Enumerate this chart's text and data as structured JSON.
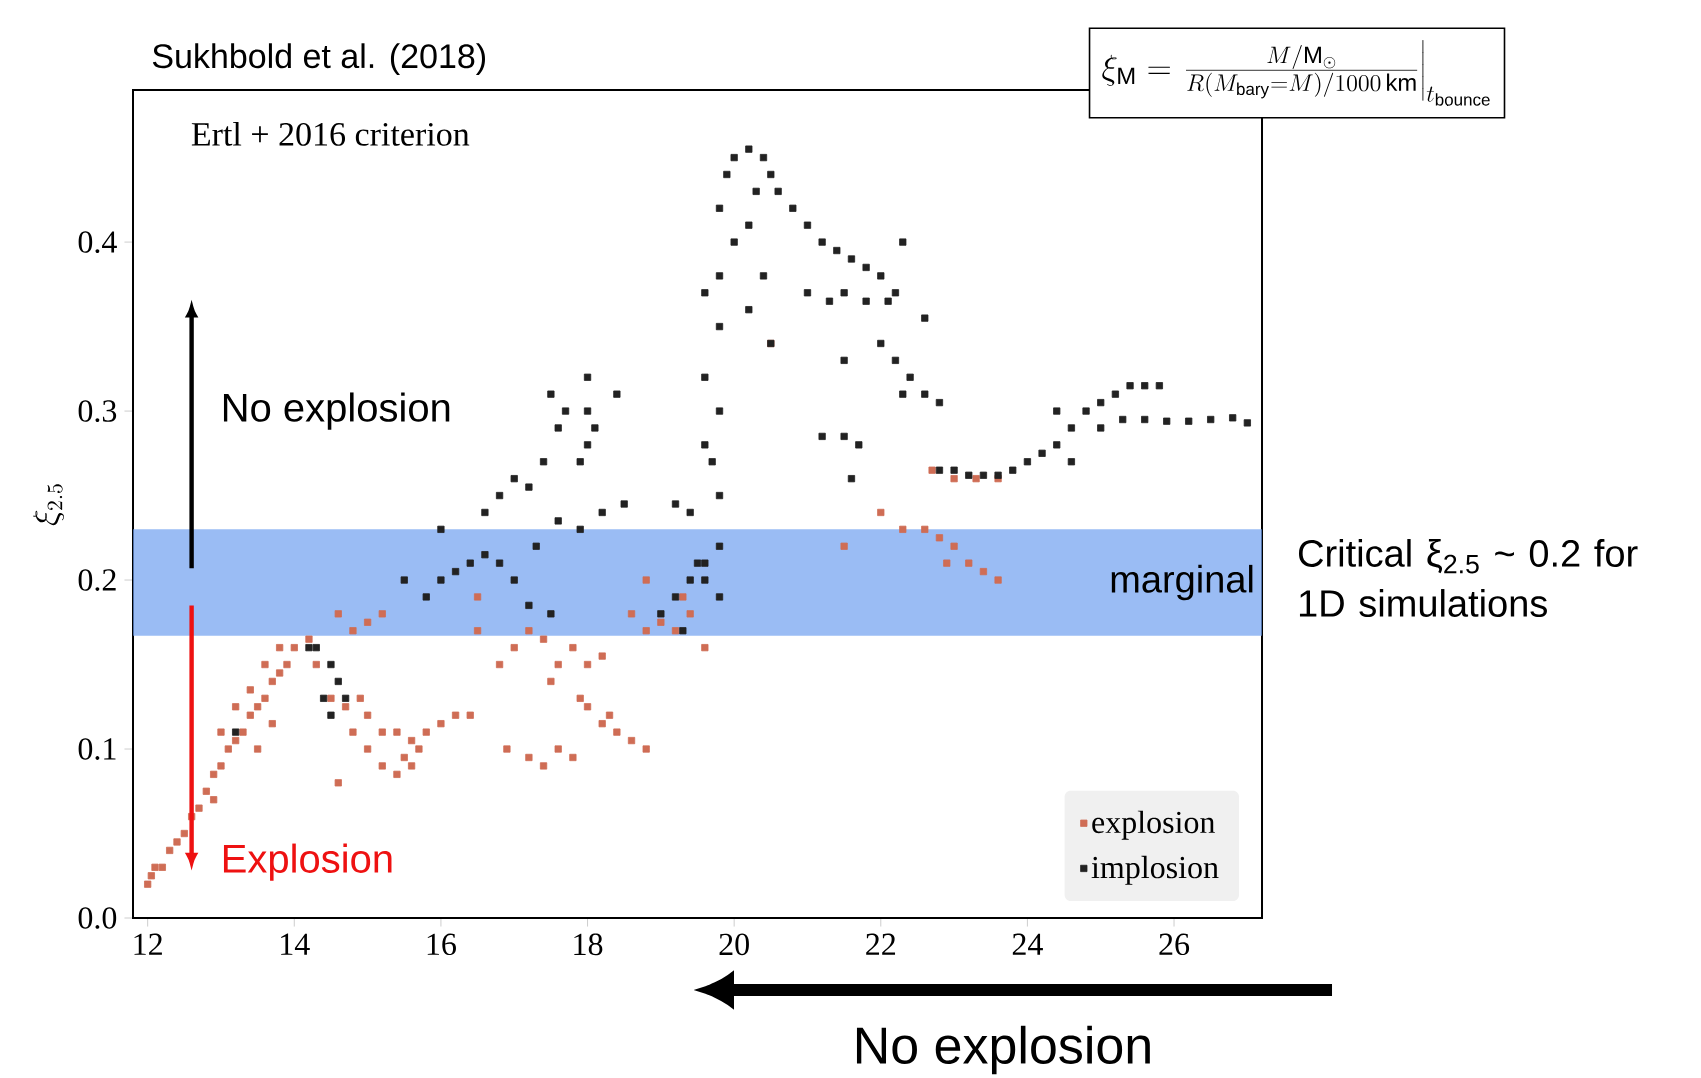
{
  "chart_data": {
    "type": "scatter",
    "title": "Sukhbold et al. (2018)",
    "ylabel": "\\xi_{2.5}",
    "xlim": [
      11.8,
      27.2
    ],
    "ylim": [
      0,
      0.49
    ],
    "xticks": [
      12,
      14,
      16,
      18,
      20,
      22,
      24,
      26
    ],
    "yticks": [
      {
        "value": 0,
        "label": "0.0"
      },
      0.1,
      0.2,
      0.3,
      0.4
    ],
    "marker": "square",
    "legend": "bottom right",
    "annotations": [
      "Ertl + 2016 criterion",
      "\\xi_{\\mathrm{M}} = \\left.\\frac{M/\\mathrm{M}_{\\odot}}{R(M_{\\mathrm{bary}} = M)/1000\\,\\mathrm{km}}\\right|_{t_{\\mathrm{bounce}}}",
      "No explosion",
      "Explosion",
      "Critical ξ$_{2.5}$ ~ 0.2 for 1D simulations",
      "No explosion"
    ],
    "bands": [
      {
        "axis": "y",
        "from": 0.167,
        "to": 0.23,
        "label": "marginal",
        "color": "#6f9fef"
      }
    ],
    "series": [
      {
        "name": "explosion",
        "color": "#cf6d55",
        "x": [
          12.0,
          12.05,
          12.1,
          12.2,
          12.3,
          12.4,
          12.5,
          12.6,
          12.7,
          12.8,
          12.9,
          13.0,
          13.1,
          13.2,
          13.3,
          13.4,
          13.5,
          13.6,
          13.7,
          13.8,
          13.9,
          14.0,
          13.2,
          13.4,
          13.6,
          13.8,
          13.0,
          13.5,
          13.7,
          12.9,
          14.2,
          14.3,
          14.5,
          14.7,
          14.9,
          15.0,
          14.8,
          15.0,
          14.6,
          15.0,
          15.2,
          15.4,
          15.6,
          15.4,
          15.6,
          15.8,
          16.0,
          16.2,
          15.2,
          15.5,
          15.7,
          16.4,
          14.8,
          14.6,
          17.0,
          17.2,
          17.4,
          17.6,
          17.8,
          18.0,
          18.2,
          17.5,
          17.9,
          16.8,
          16.5,
          16.9,
          17.2,
          17.4,
          17.6,
          17.8,
          18.0,
          18.2,
          18.4,
          18.6,
          18.8,
          18.3,
          18.8,
          19.0,
          19.2,
          19.4,
          19.6,
          19.3,
          18.6,
          15.2,
          16.5,
          18.8,
          20.5,
          22.0,
          22.3,
          22.6,
          22.8,
          22.7,
          23.0,
          23.3,
          23.6,
          22.9,
          23.2,
          23.4,
          23.6,
          23.0,
          21.5
        ],
        "values": [
          0.02,
          0.025,
          0.03,
          0.03,
          0.04,
          0.045,
          0.05,
          0.06,
          0.065,
          0.075,
          0.085,
          0.09,
          0.1,
          0.105,
          0.11,
          0.12,
          0.125,
          0.13,
          0.14,
          0.145,
          0.15,
          0.16,
          0.125,
          0.135,
          0.15,
          0.16,
          0.11,
          0.1,
          0.115,
          0.07,
          0.165,
          0.15,
          0.13,
          0.125,
          0.13,
          0.12,
          0.17,
          0.175,
          0.18,
          0.1,
          0.09,
          0.085,
          0.09,
          0.11,
          0.105,
          0.11,
          0.115,
          0.12,
          0.11,
          0.095,
          0.1,
          0.12,
          0.11,
          0.08,
          0.16,
          0.17,
          0.165,
          0.15,
          0.16,
          0.15,
          0.155,
          0.14,
          0.13,
          0.15,
          0.17,
          0.1,
          0.095,
          0.09,
          0.1,
          0.095,
          0.125,
          0.115,
          0.11,
          0.105,
          0.1,
          0.12,
          0.17,
          0.175,
          0.17,
          0.18,
          0.16,
          0.19,
          0.18,
          0.18,
          0.19,
          0.2,
          0.34,
          0.24,
          0.23,
          0.23,
          0.225,
          0.265,
          0.26,
          0.26,
          0.26,
          0.21,
          0.21,
          0.205,
          0.2,
          0.22,
          0.22
        ]
      },
      {
        "name": "implosion",
        "color": "#222222",
        "x": [
          14.2,
          14.3,
          14.5,
          14.4,
          14.6,
          14.7,
          14.5,
          13.2,
          15.5,
          15.8,
          16.0,
          16.2,
          16.4,
          16.6,
          16.8,
          17.0,
          17.2,
          17.5,
          17.3,
          16.0,
          16.6,
          16.8,
          17.0,
          17.2,
          17.4,
          17.6,
          17.7,
          17.5,
          18.0,
          18.0,
          18.1,
          18.0,
          17.9,
          18.4,
          17.6,
          18.2,
          18.5,
          17.9,
          19.2,
          19.4,
          19.0,
          19.2,
          19.4,
          19.6,
          19.8,
          19.5,
          19.3,
          19.6,
          19.8,
          19.8,
          19.7,
          19.6,
          19.8,
          19.6,
          19.8,
          19.8,
          19.6,
          19.8,
          19.9,
          20.0,
          20.2,
          20.4,
          20.5,
          20.3,
          20.6,
          20.8,
          20.2,
          20.0,
          21.0,
          21.2,
          21.4,
          21.6,
          21.8,
          22.0,
          22.2,
          21.5,
          21.0,
          21.3,
          21.8,
          22.1,
          20.4,
          20.2,
          20.5,
          22.3,
          22.6,
          21.5,
          22.0,
          22.2,
          22.4,
          22.6,
          22.8,
          22.3,
          21.5,
          21.7,
          21.2,
          21.6,
          22.8,
          23.0,
          23.2,
          23.4,
          23.6,
          23.8,
          24.0,
          24.2,
          24.4,
          24.6,
          24.8,
          25.0,
          25.2,
          25.4,
          25.6,
          25.8,
          24.6,
          25.0,
          24.4,
          25.3,
          25.6,
          25.9,
          26.2,
          26.5,
          26.8,
          27.0
        ],
        "values": [
          0.16,
          0.16,
          0.15,
          0.13,
          0.14,
          0.13,
          0.12,
          0.11,
          0.2,
          0.19,
          0.2,
          0.205,
          0.21,
          0.215,
          0.21,
          0.2,
          0.185,
          0.18,
          0.22,
          0.23,
          0.24,
          0.25,
          0.26,
          0.255,
          0.27,
          0.29,
          0.3,
          0.31,
          0.32,
          0.28,
          0.29,
          0.3,
          0.27,
          0.31,
          0.235,
          0.24,
          0.245,
          0.23,
          0.245,
          0.24,
          0.18,
          0.19,
          0.2,
          0.2,
          0.19,
          0.21,
          0.17,
          0.21,
          0.22,
          0.25,
          0.27,
          0.28,
          0.3,
          0.32,
          0.35,
          0.38,
          0.37,
          0.42,
          0.44,
          0.45,
          0.455,
          0.45,
          0.44,
          0.43,
          0.43,
          0.42,
          0.41,
          0.4,
          0.41,
          0.4,
          0.395,
          0.39,
          0.385,
          0.38,
          0.37,
          0.37,
          0.37,
          0.365,
          0.365,
          0.365,
          0.38,
          0.36,
          0.34,
          0.4,
          0.355,
          0.33,
          0.34,
          0.33,
          0.32,
          0.31,
          0.305,
          0.31,
          0.285,
          0.28,
          0.285,
          0.26,
          0.265,
          0.265,
          0.262,
          0.262,
          0.262,
          0.265,
          0.27,
          0.275,
          0.28,
          0.29,
          0.3,
          0.305,
          0.31,
          0.315,
          0.315,
          0.315,
          0.27,
          0.29,
          0.3,
          0.295,
          0.295,
          0.294,
          0.294,
          0.295,
          0.296,
          0.293
        ]
      }
    ]
  }
}
